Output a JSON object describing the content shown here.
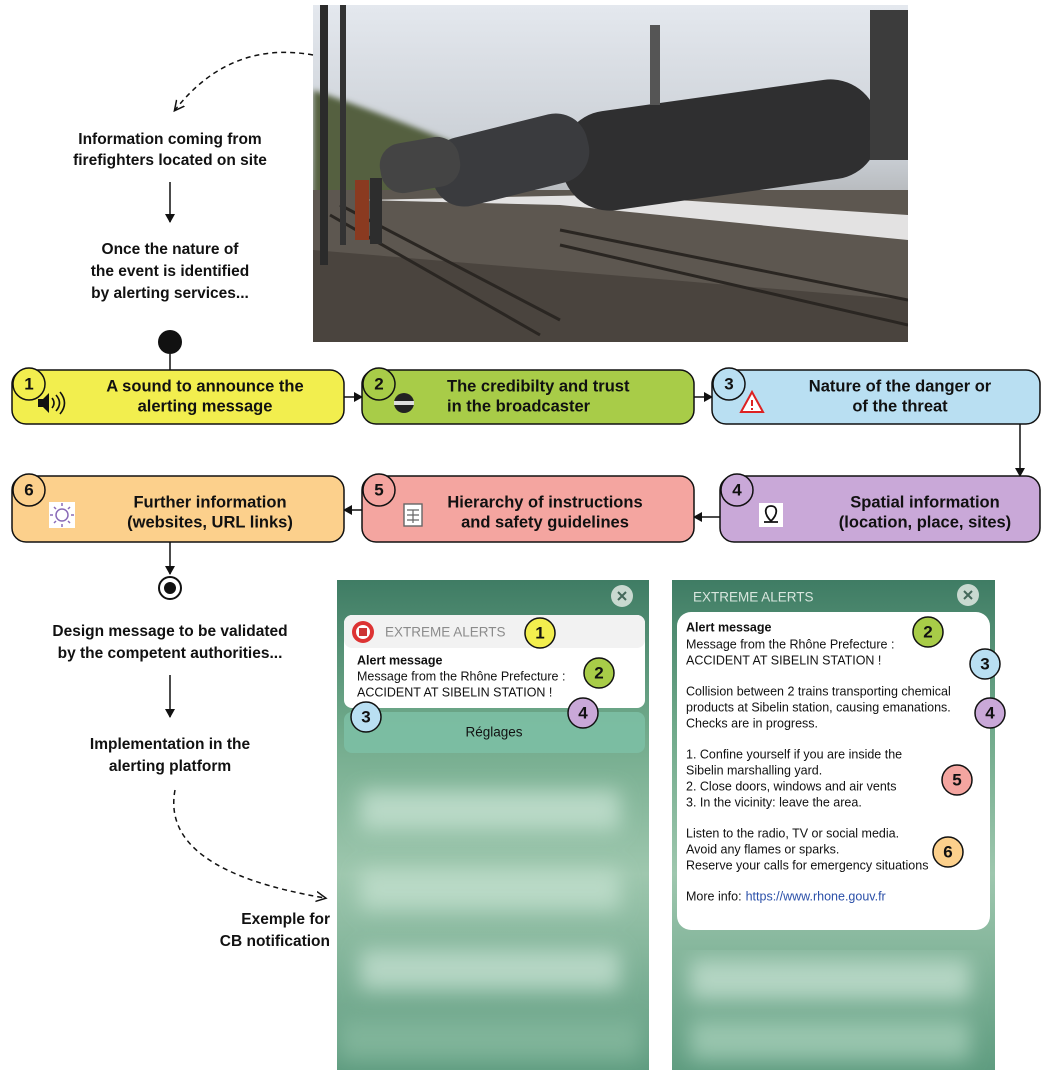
{
  "left_flow": {
    "source": [
      "Information coming from",
      "firefighters located on site"
    ],
    "identified": [
      "Once the nature of",
      "the event is identified",
      "by alerting services..."
    ],
    "design": [
      "Design message to be validated",
      "by the competent authorities..."
    ],
    "implementation": [
      "Implementation in the",
      "alerting platform"
    ],
    "example": [
      "Exemple for",
      "CB notification"
    ]
  },
  "steps": [
    {
      "number": 1,
      "label": [
        "A sound to announce the",
        "alerting message"
      ]
    },
    {
      "number": 2,
      "label": [
        "The credibilty and trust",
        "in the broadcaster"
      ]
    },
    {
      "number": 3,
      "label": [
        "Nature of the danger or",
        "of the threat"
      ]
    },
    {
      "number": 4,
      "label": [
        "Spatial information",
        "(location, place, sites)"
      ]
    },
    {
      "number": 5,
      "label": [
        "Hierarchy of instructions",
        "and safety guidelines"
      ]
    },
    {
      "number": 6,
      "label": [
        "Further information",
        "(websites, URL links)"
      ]
    }
  ],
  "notification_collapsed": {
    "header": "EXTREME ALERTS",
    "title": "Alert message",
    "body": [
      "Message from the Rhône Prefecture :",
      "ACCIDENT AT SIBELIN STATION !"
    ],
    "button": "Réglages",
    "badges": [
      1,
      2,
      3,
      4
    ]
  },
  "notification_expanded": {
    "header": "EXTREME ALERTS",
    "title": "Alert message",
    "paragraphs": [
      [
        "Message from the Rhône Prefecture :",
        "ACCIDENT AT SIBELIN STATION !"
      ],
      [
        "Collision between 2 trains transporting chemical",
        "products at Sibelin station, causing emanations.",
        "Checks are in progress."
      ],
      [
        "1. Confine yourself if you are inside the",
        "Sibelin marshalling yard.",
        "2. Close doors, windows and air vents",
        "3. In the vicinity: leave the area."
      ],
      [
        "Listen to the radio, TV or social media.",
        "Avoid any flames or sparks.",
        "Reserve your calls for emergency situations"
      ]
    ],
    "link_prefix": "More info:",
    "link": "https://www.rhone.gouv.fr",
    "badges": [
      2,
      3,
      4,
      5,
      6
    ]
  }
}
